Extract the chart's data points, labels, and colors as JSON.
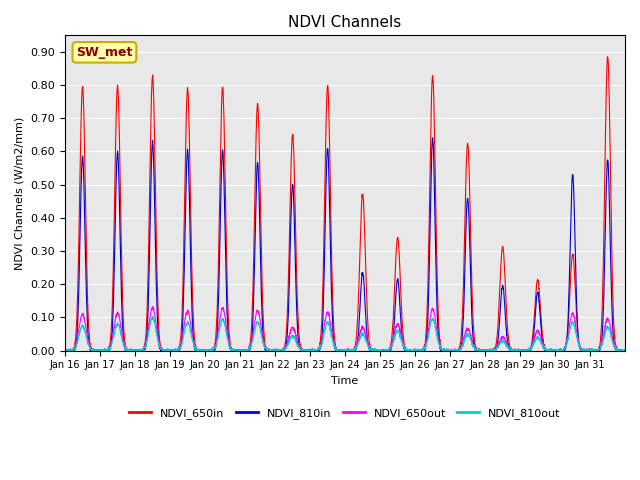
{
  "title": "NDVI Channels",
  "ylabel": "NDVI Channels (W/m2/mm)",
  "xlabel": "Time",
  "ylim": [
    0.0,
    0.95
  ],
  "yticks": [
    0.0,
    0.1,
    0.2,
    0.3,
    0.4,
    0.5,
    0.6,
    0.7,
    0.8,
    0.9
  ],
  "xtick_labels": [
    "Jan 16",
    "Jan 17",
    "Jan 18",
    "Jan 19",
    "Jan 20",
    "Jan 21",
    "Jan 22",
    "Jan 23",
    "Jan 24",
    "Jan 25",
    "Jan 26",
    "Jan 27",
    "Jan 28",
    "Jan 29",
    "Jan 30",
    "Jan 31"
  ],
  "channel_colors": {
    "NDVI_650in": "#ff0000",
    "NDVI_810in": "#0000cc",
    "NDVI_650out": "#ff00ff",
    "NDVI_810out": "#00cccc"
  },
  "sw_met_label": "SW_met",
  "bg_color": "#e8e8e8",
  "day_peaks_650in": [
    0.795,
    0.797,
    0.828,
    0.79,
    0.793,
    0.742,
    0.652,
    0.8,
    0.472,
    0.34,
    0.827,
    0.626,
    0.312,
    0.212,
    0.29,
    0.886
  ],
  "day_peaks_810in": [
    0.585,
    0.598,
    0.63,
    0.605,
    0.604,
    0.565,
    0.5,
    0.61,
    0.235,
    0.215,
    0.64,
    0.46,
    0.195,
    0.175,
    0.53,
    0.575
  ],
  "day_peaks_650out": [
    0.11,
    0.113,
    0.13,
    0.12,
    0.128,
    0.12,
    0.07,
    0.115,
    0.07,
    0.08,
    0.125,
    0.065,
    0.04,
    0.06,
    0.112,
    0.095
  ],
  "day_peaks_810out": [
    0.075,
    0.08,
    0.1,
    0.085,
    0.095,
    0.085,
    0.045,
    0.085,
    0.05,
    0.06,
    0.095,
    0.048,
    0.028,
    0.04,
    0.085,
    0.07
  ]
}
